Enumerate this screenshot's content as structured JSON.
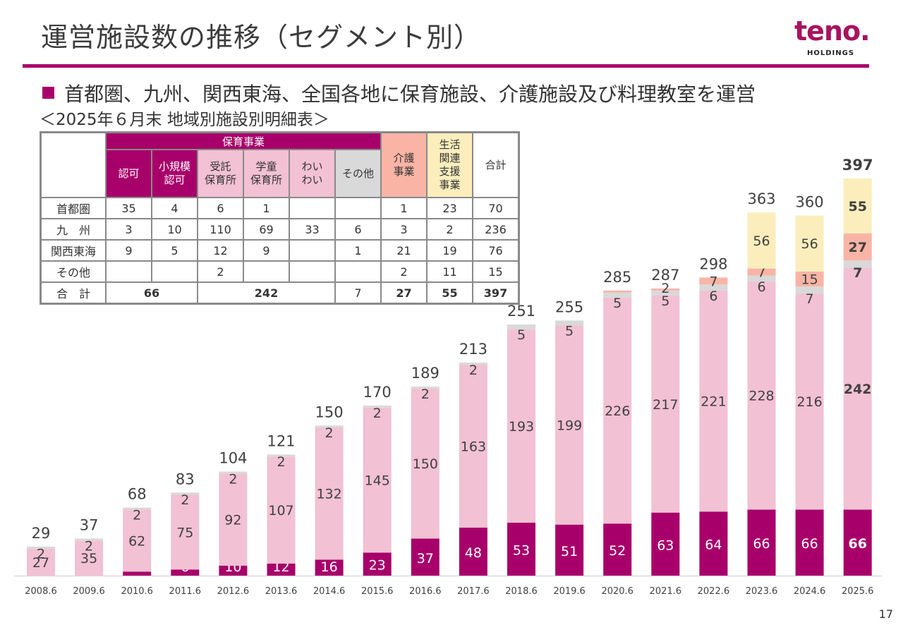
{
  "header": {
    "title": "運営施設数の推移（セグメント別）",
    "logo_text": "teno.",
    "logo_sub": "HOLDINGS",
    "accent_color": "#a8006a"
  },
  "bullet": "首都圏、九州、関西東海、全国各地に保育施設、介護施設及び料理教室を運営",
  "subtitle": "＜2025年６月末 地域別施設別明細表＞",
  "table": {
    "group_header": "保育事業",
    "columns": [
      "認可",
      "小規模\n認可",
      "受託\n保育所",
      "学童\n保育所",
      "わい\nわい",
      "その他",
      "介護\n事業",
      "生活\n関連\n支援\n事業",
      "合計"
    ],
    "rows": [
      {
        "label": "首都圏",
        "cells": [
          "35",
          "4",
          "6",
          "1",
          "",
          "",
          "1",
          "23",
          "70"
        ]
      },
      {
        "label": "九　州",
        "cells": [
          "3",
          "10",
          "110",
          "69",
          "33",
          "6",
          "3",
          "2",
          "236"
        ]
      },
      {
        "label": "関西東海",
        "cells": [
          "9",
          "5",
          "12",
          "9",
          "",
          "1",
          "21",
          "19",
          "76"
        ]
      },
      {
        "label": "その他",
        "cells": [
          "",
          "",
          "2",
          "",
          "",
          "",
          "2",
          "11",
          "15"
        ]
      }
    ],
    "total_row": {
      "label": "合　計",
      "ninka_total": "66",
      "pink_total": "242",
      "other": "7",
      "kaigo": "27",
      "seikatsu": "55",
      "grand": "397"
    }
  },
  "chart_data": {
    "type": "bar",
    "stacked": true,
    "title": "",
    "xlabel": "",
    "ylabel": "",
    "categories": [
      "2008.6",
      "2009.6",
      "2010.6",
      "2011.6",
      "2012.6",
      "2013.6",
      "2014.6",
      "2015.6",
      "2016.6",
      "2017.6",
      "2018.6",
      "2019.6",
      "2020.6",
      "2021.6",
      "2022.6",
      "2023.6",
      "2024.6",
      "2025.6"
    ],
    "series": [
      {
        "name": "認可・小規模認可",
        "color": "#a8006a",
        "label_color": "#ffffff",
        "values": [
          0,
          0,
          4,
          6,
          10,
          12,
          16,
          23,
          37,
          48,
          53,
          51,
          52,
          63,
          64,
          66,
          66,
          66
        ],
        "labels": [
          "",
          "",
          "",
          "6",
          "10",
          "12",
          "16",
          "23",
          "37",
          "48",
          "53",
          "51",
          "52",
          "63",
          "64",
          "66",
          "66",
          "66"
        ]
      },
      {
        "name": "受託・学童・わいわい",
        "color": "#f2c1d3",
        "label_color": "#404040",
        "values": [
          27,
          35,
          62,
          75,
          92,
          107,
          132,
          145,
          150,
          163,
          193,
          199,
          226,
          217,
          221,
          228,
          216,
          242
        ],
        "labels": [
          "27",
          "35",
          "62",
          "75",
          "92",
          "107",
          "132",
          "145",
          "150",
          "163",
          "193",
          "199",
          "226",
          "217",
          "221",
          "228",
          "216",
          "242"
        ]
      },
      {
        "name": "その他",
        "color": "#d9d9d9",
        "label_color": "#404040",
        "values": [
          2,
          2,
          2,
          2,
          2,
          2,
          2,
          2,
          2,
          2,
          5,
          5,
          5,
          5,
          6,
          6,
          7,
          7
        ],
        "labels": [
          "2",
          "2",
          "2",
          "2",
          "2",
          "2",
          "2",
          "2",
          "2",
          "2",
          "5",
          "5",
          "5",
          "5",
          "6",
          "6",
          "7",
          "7"
        ]
      },
      {
        "name": "介護事業",
        "color": "#f9b4a6",
        "label_color": "#404040",
        "values": [
          0,
          0,
          0,
          0,
          0,
          0,
          0,
          0,
          0,
          0,
          0,
          0,
          2,
          2,
          7,
          7,
          15,
          27
        ],
        "labels": [
          "",
          "",
          "",
          "",
          "",
          "",
          "",
          "",
          "",
          "",
          "",
          "",
          "",
          "2",
          "7",
          "7",
          "15",
          "27"
        ]
      },
      {
        "name": "生活関連支援事業",
        "color": "#fbeebc",
        "label_color": "#404040",
        "values": [
          0,
          0,
          0,
          0,
          0,
          0,
          0,
          0,
          0,
          0,
          0,
          0,
          0,
          0,
          0,
          56,
          56,
          55
        ],
        "labels": [
          "",
          "",
          "",
          "",
          "",
          "",
          "",
          "",
          "",
          "",
          "",
          "",
          "",
          "",
          "",
          "56",
          "56",
          "55"
        ]
      }
    ],
    "totals": [
      29,
      37,
      68,
      83,
      104,
      121,
      150,
      170,
      189,
      213,
      251,
      255,
      285,
      287,
      298,
      363,
      360,
      397
    ],
    "highlight_last": true,
    "ylim": [
      0,
      420
    ],
    "grid": false,
    "legend": "none"
  },
  "page_number": "17"
}
